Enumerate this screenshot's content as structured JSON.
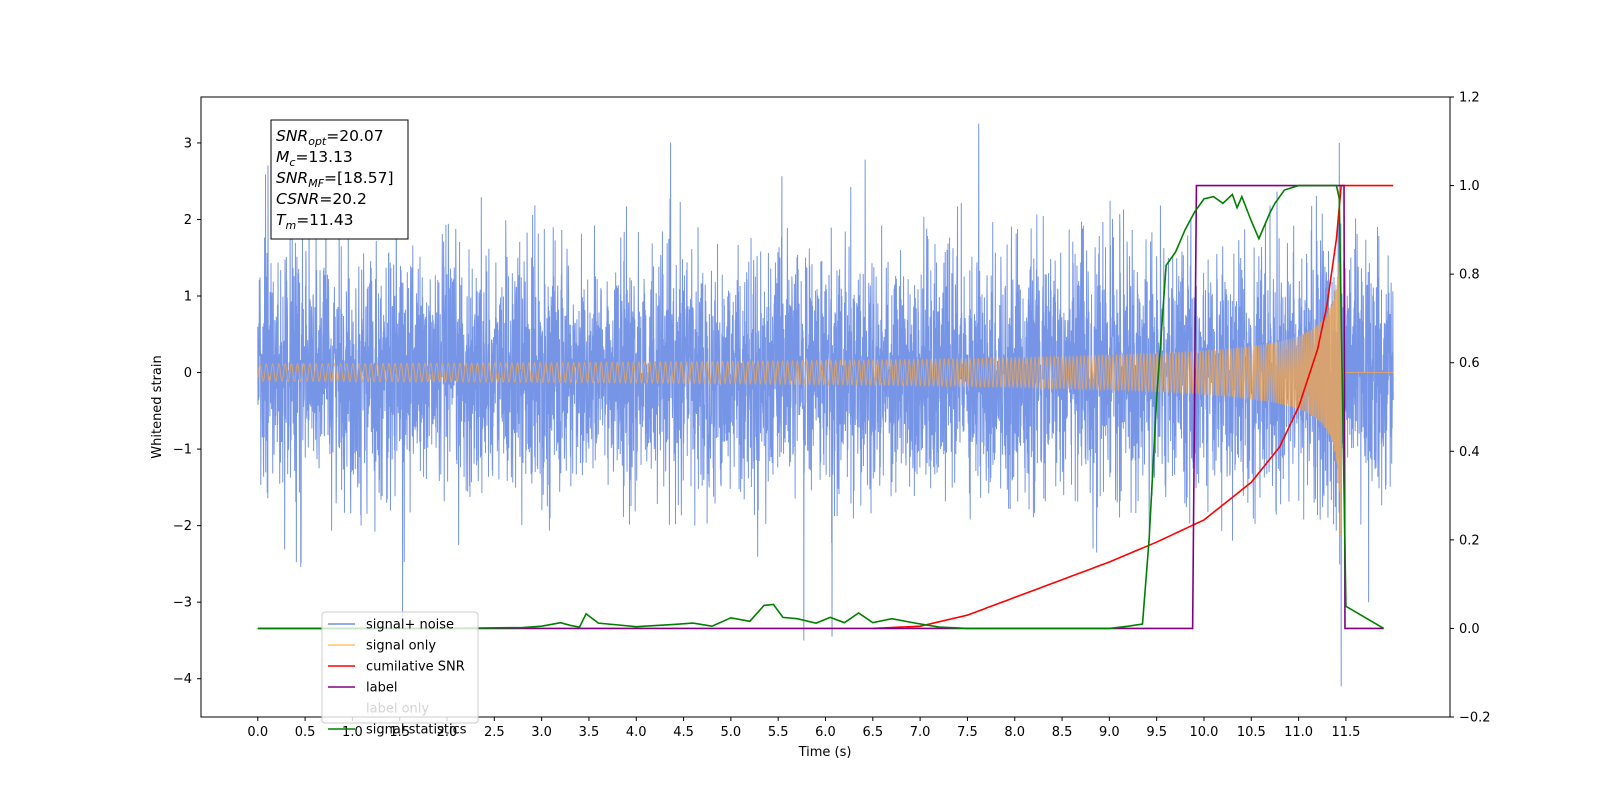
{
  "chart_data": {
    "type": "line",
    "xlabel": "Time (s)",
    "ylabel": "Whitened strain",
    "xlim": [
      -0.6,
      12.6
    ],
    "ylim": [
      -4.5,
      3.6
    ],
    "y2lim": [
      -0.2,
      1.2
    ],
    "x_ticks": [
      "0.0",
      "0.5",
      "1.0",
      "1.5",
      "2.0",
      "2.5",
      "3.0",
      "3.5",
      "4.0",
      "4.5",
      "5.0",
      "5.5",
      "6.0",
      "6.5",
      "7.0",
      "7.5",
      "8.0",
      "8.5",
      "9.0",
      "9.5",
      "10.0",
      "10.5",
      "11.0",
      "11.5"
    ],
    "y_ticks": [
      "3",
      "2",
      "1",
      "0",
      "−1",
      "−2",
      "−3",
      "−4"
    ],
    "y2_ticks": [
      "1.2",
      "1.0",
      "0.8",
      "0.6",
      "0.4",
      "0.2",
      "0.0",
      "−0.2"
    ],
    "info_box": [
      {
        "sym": "SNR",
        "sub": "opt",
        "val": "=20.07"
      },
      {
        "sym": "M",
        "sub": "c",
        "val": "=13.13"
      },
      {
        "sym": "SNR",
        "sub": "MF",
        "val": "=[18.57]"
      },
      {
        "sym": "CSNR",
        "sub": "",
        "val": "=20.2"
      },
      {
        "sym": "T",
        "sub": "m",
        "val": "=11.43"
      }
    ],
    "legend": [
      {
        "label": "signal+ noise",
        "color": "#6f8fe6"
      },
      {
        "label": "signal only",
        "color": "#ffc46e"
      },
      {
        "label": "cumilative SNR",
        "color": "#ff0000"
      },
      {
        "label": "label",
        "color": "#800080"
      },
      {
        "label": "label only",
        "color": "#cfcfcf"
      },
      {
        "label": "signal statistics",
        "color": "#008000"
      }
    ],
    "legend_location": "lower-left",
    "series": [
      {
        "name": "signal+ noise",
        "axis": "left",
        "color": "#6f8fe6",
        "x_range": [
          0,
          12.0
        ],
        "noise_std": 0.75,
        "note_peaks": [
          [
            1.53,
            -3.2
          ],
          [
            5.77,
            -3.5
          ],
          [
            6.07,
            -3.45
          ],
          [
            11.45,
            -4.1
          ],
          [
            7.62,
            3.25
          ],
          [
            11.43,
            3.0
          ]
        ]
      },
      {
        "name": "signal only",
        "axis": "left",
        "color": "#e8a55c",
        "x_range": [
          0,
          12.0
        ],
        "merger_time": 11.45,
        "peak_amplitude": 2.7
      },
      {
        "name": "cumilative SNR",
        "axis": "right",
        "color": "#ff0000",
        "x": [
          6.5,
          7.0,
          7.5,
          8.0,
          8.5,
          9.0,
          9.5,
          10.0,
          10.5,
          10.8,
          11.0,
          11.2,
          11.3,
          11.4,
          11.45,
          12.0
        ],
        "y": [
          0.0,
          0.005,
          0.03,
          0.07,
          0.11,
          0.15,
          0.195,
          0.245,
          0.33,
          0.41,
          0.5,
          0.63,
          0.73,
          0.88,
          1.0,
          1.0
        ]
      },
      {
        "name": "label",
        "axis": "right",
        "color": "#800080",
        "x": [
          0.0,
          9.88,
          9.92,
          11.48,
          11.49,
          11.9
        ],
        "y": [
          0.0,
          0.0,
          1.0,
          1.0,
          0.0,
          0.0
        ]
      },
      {
        "name": "signal statistics",
        "axis": "right",
        "color": "#008000",
        "x": [
          0.0,
          0.9,
          1.0,
          2.0,
          2.8,
          3.0,
          3.2,
          3.3,
          3.4,
          3.47,
          3.6,
          3.8,
          4.0,
          4.4,
          4.6,
          4.8,
          5.0,
          5.2,
          5.35,
          5.45,
          5.55,
          5.7,
          5.9,
          6.05,
          6.2,
          6.35,
          6.5,
          6.7,
          6.95,
          7.2,
          7.5,
          9.0,
          9.2,
          9.35,
          9.42,
          9.5,
          9.6,
          9.7,
          9.8,
          9.9,
          10.0,
          10.1,
          10.2,
          10.3,
          10.35,
          10.4,
          10.5,
          10.58,
          10.7,
          10.75,
          10.85,
          11.0,
          11.4,
          11.43,
          11.5,
          11.9
        ],
        "y": [
          0.0,
          0.0,
          0.0,
          0.0,
          0.002,
          0.005,
          0.013,
          0.007,
          0.003,
          0.033,
          0.012,
          0.008,
          0.004,
          0.009,
          0.012,
          0.005,
          0.024,
          0.016,
          0.052,
          0.054,
          0.025,
          0.022,
          0.012,
          0.025,
          0.013,
          0.035,
          0.013,
          0.022,
          0.012,
          0.003,
          0.0,
          0.0,
          0.005,
          0.01,
          0.2,
          0.52,
          0.82,
          0.85,
          0.9,
          0.94,
          0.97,
          0.975,
          0.96,
          0.98,
          0.95,
          0.975,
          0.92,
          0.88,
          0.94,
          0.96,
          0.99,
          1.0,
          1.0,
          0.97,
          0.05,
          0.0
        ]
      }
    ]
  }
}
